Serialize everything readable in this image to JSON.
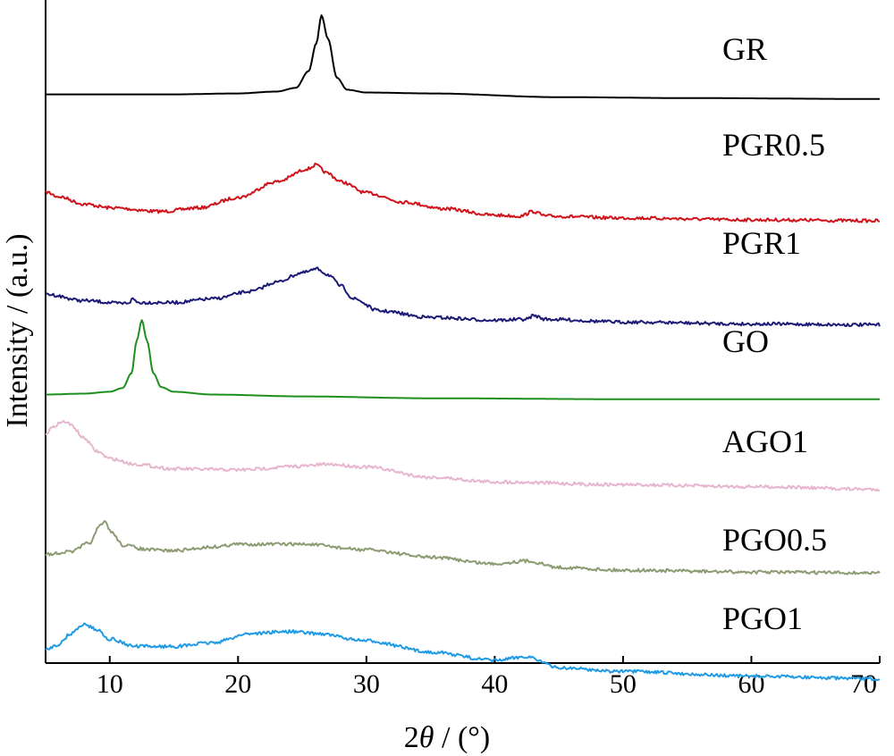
{
  "chart_data": {
    "type": "line",
    "xlabel_prefix": "2",
    "xlabel_symbol": "θ",
    "xlabel_suffix": " / (°)",
    "ylabel": "Intensity / (a.u.)",
    "xlim": [
      5,
      70
    ],
    "x_ticks": [
      10,
      20,
      30,
      40,
      50,
      60,
      70
    ],
    "grid": false,
    "legend": "labels placed at right end of each curve",
    "series": [
      {
        "name": "GR",
        "color": "#000000",
        "points": [
          [
            5,
            0.9
          ],
          [
            15,
            0.9
          ],
          [
            20,
            0.89
          ],
          [
            23,
            0.87
          ],
          [
            24.5,
            0.83
          ],
          [
            25.5,
            0.65
          ],
          [
            26.1,
            0.35
          ],
          [
            26.5,
            0.05
          ],
          [
            27,
            0.3
          ],
          [
            27.7,
            0.72
          ],
          [
            28.5,
            0.85
          ],
          [
            30,
            0.88
          ],
          [
            35,
            0.89
          ],
          [
            45,
            0.93
          ],
          [
            55,
            0.94
          ],
          [
            70,
            0.95
          ]
        ]
      },
      {
        "name": "PGR0.5",
        "color": "#d0121b",
        "points": [
          [
            5,
            1.95
          ],
          [
            6,
            2.0
          ],
          [
            8,
            2.08
          ],
          [
            10,
            2.12
          ],
          [
            14,
            2.16
          ],
          [
            17,
            2.12
          ],
          [
            20,
            2.01
          ],
          [
            23,
            1.84
          ],
          [
            25.5,
            1.7
          ],
          [
            26,
            1.66
          ],
          [
            27,
            1.75
          ],
          [
            28,
            1.84
          ],
          [
            30,
            1.96
          ],
          [
            33,
            2.06
          ],
          [
            36,
            2.13
          ],
          [
            40,
            2.2
          ],
          [
            42,
            2.21
          ],
          [
            43,
            2.16
          ],
          [
            44,
            2.21
          ],
          [
            50,
            2.23
          ],
          [
            60,
            2.25
          ],
          [
            70,
            2.26
          ]
        ]
      },
      {
        "name": "PGR1",
        "color": "#1c1a77",
        "points": [
          [
            5,
            3.05
          ],
          [
            8,
            3.12
          ],
          [
            11,
            3.15
          ],
          [
            11.5,
            3.14
          ],
          [
            11.8,
            3.1
          ],
          [
            12.2,
            3.14
          ],
          [
            15,
            3.14
          ],
          [
            18,
            3.1
          ],
          [
            21,
            3.02
          ],
          [
            23,
            2.92
          ],
          [
            25,
            2.82
          ],
          [
            26.2,
            2.78
          ],
          [
            27,
            2.84
          ],
          [
            28,
            2.96
          ],
          [
            29,
            3.1
          ],
          [
            31,
            3.23
          ],
          [
            35,
            3.3
          ],
          [
            40,
            3.33
          ],
          [
            42.5,
            3.32
          ],
          [
            43,
            3.28
          ],
          [
            44,
            3.32
          ],
          [
            50,
            3.35
          ],
          [
            60,
            3.37
          ],
          [
            70,
            3.38
          ]
        ]
      },
      {
        "name": "GO",
        "color": "#1c8f1c",
        "points": [
          [
            5,
            4.13
          ],
          [
            8,
            4.12
          ],
          [
            10,
            4.1
          ],
          [
            11,
            4.06
          ],
          [
            11.7,
            3.9
          ],
          [
            12.1,
            3.55
          ],
          [
            12.5,
            3.33
          ],
          [
            12.9,
            3.55
          ],
          [
            13.4,
            3.9
          ],
          [
            14,
            4.05
          ],
          [
            15,
            4.1
          ],
          [
            18,
            4.13
          ],
          [
            25,
            4.15
          ],
          [
            35,
            4.17
          ],
          [
            50,
            4.18
          ],
          [
            70,
            4.18
          ]
        ]
      },
      {
        "name": "AGO1",
        "color": "#e6b5ce",
        "points": [
          [
            5,
            4.55
          ],
          [
            5.5,
            4.49
          ],
          [
            6,
            4.44
          ],
          [
            6.5,
            4.42
          ],
          [
            7,
            4.46
          ],
          [
            8,
            4.6
          ],
          [
            9,
            4.74
          ],
          [
            10,
            4.82
          ],
          [
            12,
            4.88
          ],
          [
            15,
            4.93
          ],
          [
            20,
            4.94
          ],
          [
            25,
            4.9
          ],
          [
            27,
            4.88
          ],
          [
            30,
            4.91
          ],
          [
            35,
            5.02
          ],
          [
            40,
            5.07
          ],
          [
            50,
            5.1
          ],
          [
            60,
            5.12
          ],
          [
            70,
            5.15
          ]
        ]
      },
      {
        "name": "PGO0.5",
        "color": "#8c9b71",
        "points": [
          [
            5,
            5.85
          ],
          [
            7,
            5.82
          ],
          [
            8.5,
            5.72
          ],
          [
            9.2,
            5.55
          ],
          [
            9.6,
            5.5
          ],
          [
            10.2,
            5.62
          ],
          [
            11,
            5.75
          ],
          [
            13,
            5.8
          ],
          [
            15,
            5.81
          ],
          [
            18,
            5.77
          ],
          [
            20,
            5.74
          ],
          [
            25,
            5.74
          ],
          [
            30,
            5.8
          ],
          [
            35,
            5.88
          ],
          [
            40,
            5.95
          ],
          [
            42.5,
            5.92
          ],
          [
            45,
            5.99
          ],
          [
            50,
            6.02
          ],
          [
            60,
            6.04
          ],
          [
            70,
            6.05
          ]
        ]
      },
      {
        "name": "PGO1",
        "color": "#1f9be6",
        "points": [
          [
            5,
            6.87
          ],
          [
            6,
            6.82
          ],
          [
            7,
            6.7
          ],
          [
            8,
            6.6
          ],
          [
            9,
            6.66
          ],
          [
            10,
            6.76
          ],
          [
            12,
            6.84
          ],
          [
            15,
            6.84
          ],
          [
            18,
            6.8
          ],
          [
            21,
            6.7
          ],
          [
            24,
            6.68
          ],
          [
            26,
            6.7
          ],
          [
            30,
            6.78
          ],
          [
            35,
            6.9
          ],
          [
            40,
            6.99
          ],
          [
            42.5,
            6.95
          ],
          [
            45,
            7.07
          ],
          [
            50,
            7.11
          ],
          [
            60,
            7.16
          ],
          [
            70,
            7.19
          ]
        ]
      }
    ]
  }
}
